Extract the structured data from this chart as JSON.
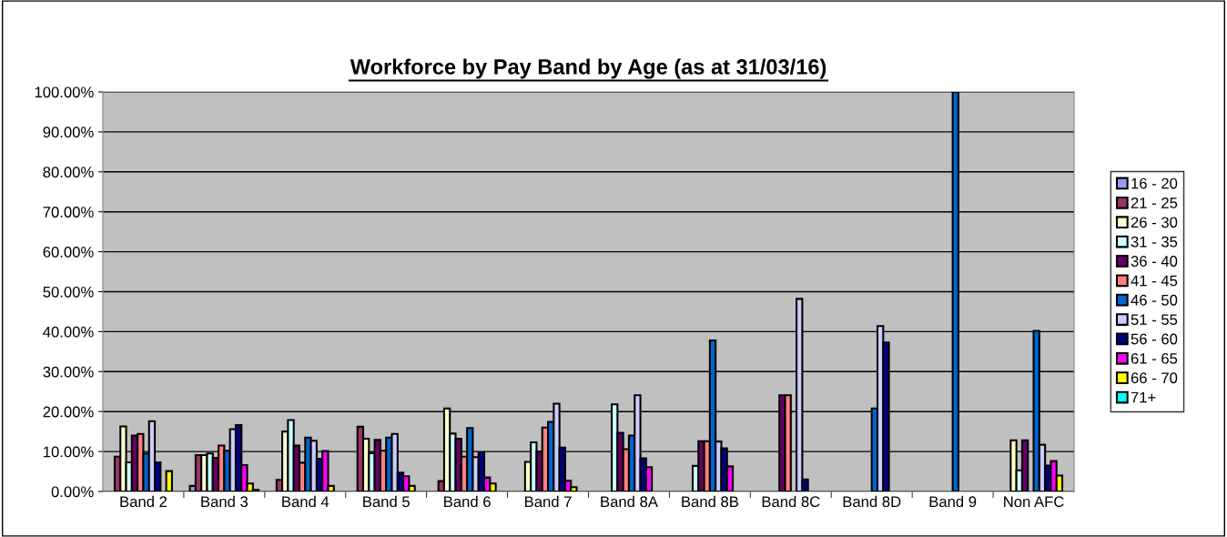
{
  "chart_data": {
    "type": "bar",
    "title": "Workforce by Pay Band by Age (as at 31/03/16)",
    "categories": [
      "Band 2",
      "Band 3",
      "Band 4",
      "Band 5",
      "Band 6",
      "Band 7",
      "Band 8A",
      "Band 8B",
      "Band 8C",
      "Band 8D",
      "Band 9",
      "Non AFC"
    ],
    "series": [
      {
        "name": "16 - 20",
        "color": "#9999ff",
        "values": [
          null,
          1.4,
          null,
          null,
          null,
          null,
          null,
          null,
          null,
          null,
          null,
          null
        ]
      },
      {
        "name": "21 - 25",
        "color": "#993366",
        "values": [
          8.7,
          9.1,
          2.9,
          16.2,
          2.6,
          null,
          null,
          null,
          null,
          null,
          null,
          null
        ]
      },
      {
        "name": "26 - 30",
        "color": "#ffffcc",
        "values": [
          16.3,
          9.1,
          15.0,
          13.2,
          20.8,
          7.4,
          null,
          null,
          null,
          null,
          null,
          12.8
        ]
      },
      {
        "name": "31 - 35",
        "color": "#ccffff",
        "values": [
          7.3,
          9.5,
          17.9,
          9.6,
          14.5,
          12.3,
          21.8,
          6.4,
          null,
          null,
          null,
          5.3
        ]
      },
      {
        "name": "36 - 40",
        "color": "#660066",
        "values": [
          14.0,
          8.4,
          11.5,
          12.9,
          13.2,
          10.0,
          14.7,
          12.6,
          24.1,
          null,
          null,
          12.8
        ]
      },
      {
        "name": "41 - 45",
        "color": "#ff8080",
        "values": [
          14.4,
          11.5,
          7.2,
          10.2,
          8.7,
          16.0,
          10.6,
          12.6,
          24.1,
          null,
          null,
          null
        ]
      },
      {
        "name": "46 - 50",
        "color": "#0066cc",
        "values": [
          9.5,
          10.2,
          13.5,
          13.5,
          15.9,
          17.4,
          14.0,
          37.8,
          null,
          20.8,
          100,
          40.2
        ]
      },
      {
        "name": "51 - 55",
        "color": "#ccccff",
        "values": [
          17.6,
          15.6,
          12.7,
          14.4,
          8.6,
          22.0,
          24.1,
          12.5,
          48.2,
          41.4,
          null,
          11.7
        ]
      },
      {
        "name": "56 - 60",
        "color": "#000080",
        "values": [
          7.3,
          16.6,
          8.2,
          4.7,
          9.8,
          11.0,
          8.3,
          10.8,
          3.0,
          37.3,
          null,
          6.5
        ]
      },
      {
        "name": "61 - 65",
        "color": "#ff00ff",
        "values": [
          null,
          6.6,
          10.1,
          3.8,
          3.5,
          2.7,
          6.1,
          6.3,
          null,
          null,
          null,
          7.6
        ]
      },
      {
        "name": "66 - 70",
        "color": "#ffff00",
        "values": [
          5.1,
          2.0,
          1.4,
          1.4,
          2.0,
          1.1,
          null,
          null,
          null,
          null,
          null,
          4.0
        ]
      },
      {
        "name": "71+",
        "color": "#00ffff",
        "values": [
          null,
          0.4,
          null,
          null,
          null,
          null,
          null,
          null,
          null,
          null,
          null,
          null
        ]
      }
    ],
    "ylim": [
      0,
      100
    ],
    "yticks": [
      {
        "value": 0,
        "label": "0.00%"
      },
      {
        "value": 10,
        "label": "10.00%"
      },
      {
        "value": 20,
        "label": "20.00%"
      },
      {
        "value": 30,
        "label": "30.00%"
      },
      {
        "value": 40,
        "label": "40.00%"
      },
      {
        "value": 50,
        "label": "50.00%"
      },
      {
        "value": 60,
        "label": "60.00%"
      },
      {
        "value": 70,
        "label": "70.00%"
      },
      {
        "value": 80,
        "label": "80.00%"
      },
      {
        "value": 90,
        "label": "90.00%"
      },
      {
        "value": 100,
        "label": "100.00%"
      }
    ],
    "grid": "y",
    "legend": "right"
  }
}
